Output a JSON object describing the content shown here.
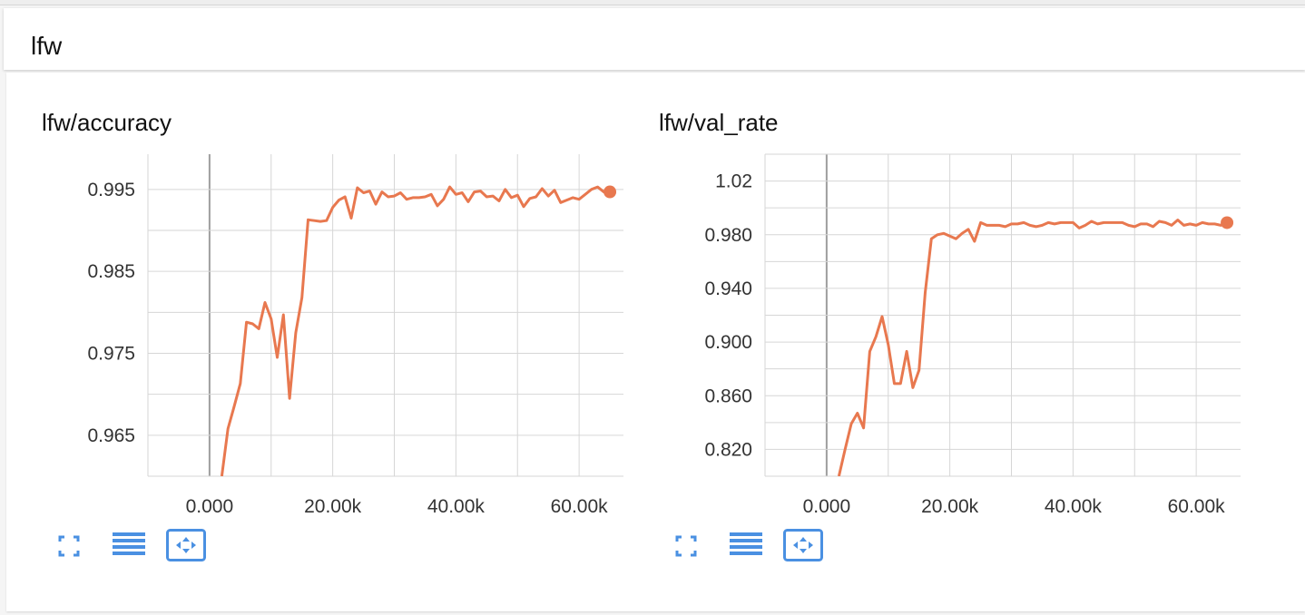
{
  "group": {
    "title": "lfw"
  },
  "colors": {
    "series": "#e8784f",
    "grid": "#d6d6d6",
    "zero_axis": "#9e9e9e",
    "tool": "#4a90e2"
  },
  "icons": {
    "expand": "fullscreen-icon",
    "log": "list-lines-icon",
    "fit": "fit-domain-icon"
  },
  "chart_data": [
    {
      "type": "line",
      "title": "lfw/accuracy",
      "xlim": [
        -10000,
        70000
      ],
      "ylim": [
        0.96,
        0.9993
      ],
      "x_ticks": [
        0,
        20000,
        40000,
        60000
      ],
      "x_tick_labels": [
        "0.000",
        "20.00k",
        "40.00k",
        "60.00k"
      ],
      "y_ticks": [
        0.965,
        0.975,
        0.985,
        0.995
      ],
      "y_tick_labels": [
        "0.965",
        "0.975",
        "0.985",
        "0.995"
      ],
      "grid": true,
      "series": [
        {
          "x": [
            2000,
            3000,
            4000,
            5000,
            6000,
            7000,
            8000,
            9000,
            10000,
            11000,
            12000,
            13000,
            14000,
            15000,
            16000,
            17000,
            18000,
            19000,
            20000,
            21000,
            22000,
            23000,
            24000,
            25000,
            26000,
            27000,
            28000,
            29000,
            30000,
            31000,
            32000,
            33000,
            34000,
            35000,
            36000,
            37000,
            38000,
            39000,
            40000,
            41000,
            42000,
            43000,
            44000,
            45000,
            46000,
            47000,
            48000,
            49000,
            50000,
            51000,
            52000,
            53000,
            54000,
            55000,
            56000,
            57000,
            58000,
            59000,
            60000,
            61000,
            62000,
            63000,
            64000,
            65000
          ],
          "y": [
            0.96,
            0.9658,
            0.9685,
            0.9713,
            0.9788,
            0.9786,
            0.978,
            0.9812,
            0.9792,
            0.9745,
            0.9797,
            0.9695,
            0.9775,
            0.9818,
            0.9913,
            0.9912,
            0.9911,
            0.9912,
            0.9928,
            0.9937,
            0.9941,
            0.9915,
            0.9952,
            0.9946,
            0.9948,
            0.9932,
            0.9947,
            0.9941,
            0.9942,
            0.9946,
            0.9938,
            0.994,
            0.994,
            0.9941,
            0.9944,
            0.993,
            0.9938,
            0.9953,
            0.9944,
            0.9946,
            0.9935,
            0.9947,
            0.9948,
            0.9941,
            0.9942,
            0.9936,
            0.995,
            0.994,
            0.9943,
            0.9929,
            0.9939,
            0.9941,
            0.9951,
            0.9942,
            0.9949,
            0.9934,
            0.9937,
            0.994,
            0.9938,
            0.9944,
            0.995,
            0.9953,
            0.9947,
            0.9947
          ]
        }
      ]
    },
    {
      "type": "line",
      "title": "lfw/val_rate",
      "xlim": [
        -10000,
        70000
      ],
      "ylim": [
        0.8,
        1.04
      ],
      "x_ticks": [
        0,
        20000,
        40000,
        60000
      ],
      "x_tick_labels": [
        "0.000",
        "20.00k",
        "40.00k",
        "60.00k"
      ],
      "y_ticks": [
        0.82,
        0.86,
        0.9,
        0.94,
        0.98,
        1.02
      ],
      "y_tick_labels": [
        "0.820",
        "0.860",
        "0.900",
        "0.940",
        "0.980",
        "1.02"
      ],
      "grid": true,
      "series": [
        {
          "x": [
            2000,
            3000,
            4000,
            5000,
            6000,
            7000,
            8000,
            9000,
            10000,
            11000,
            12000,
            13000,
            14000,
            15000,
            16000,
            17000,
            18000,
            19000,
            20000,
            21000,
            22000,
            23000,
            24000,
            25000,
            26000,
            27000,
            28000,
            29000,
            30000,
            31000,
            32000,
            33000,
            34000,
            35000,
            36000,
            37000,
            38000,
            39000,
            40000,
            41000,
            42000,
            43000,
            44000,
            45000,
            46000,
            47000,
            48000,
            49000,
            50000,
            51000,
            52000,
            53000,
            54000,
            55000,
            56000,
            57000,
            58000,
            59000,
            60000,
            61000,
            62000,
            63000,
            64000,
            65000
          ],
          "y": [
            0.8,
            0.82,
            0.839,
            0.847,
            0.836,
            0.893,
            0.904,
            0.919,
            0.898,
            0.869,
            0.869,
            0.893,
            0.866,
            0.879,
            0.937,
            0.977,
            0.98,
            0.981,
            0.979,
            0.977,
            0.981,
            0.984,
            0.975,
            0.989,
            0.987,
            0.987,
            0.987,
            0.986,
            0.988,
            0.988,
            0.989,
            0.987,
            0.986,
            0.987,
            0.989,
            0.988,
            0.989,
            0.989,
            0.989,
            0.985,
            0.987,
            0.99,
            0.988,
            0.989,
            0.989,
            0.989,
            0.989,
            0.987,
            0.986,
            0.988,
            0.988,
            0.986,
            0.99,
            0.989,
            0.987,
            0.991,
            0.987,
            0.988,
            0.987,
            0.989,
            0.988,
            0.988,
            0.987,
            0.989
          ]
        }
      ]
    }
  ]
}
